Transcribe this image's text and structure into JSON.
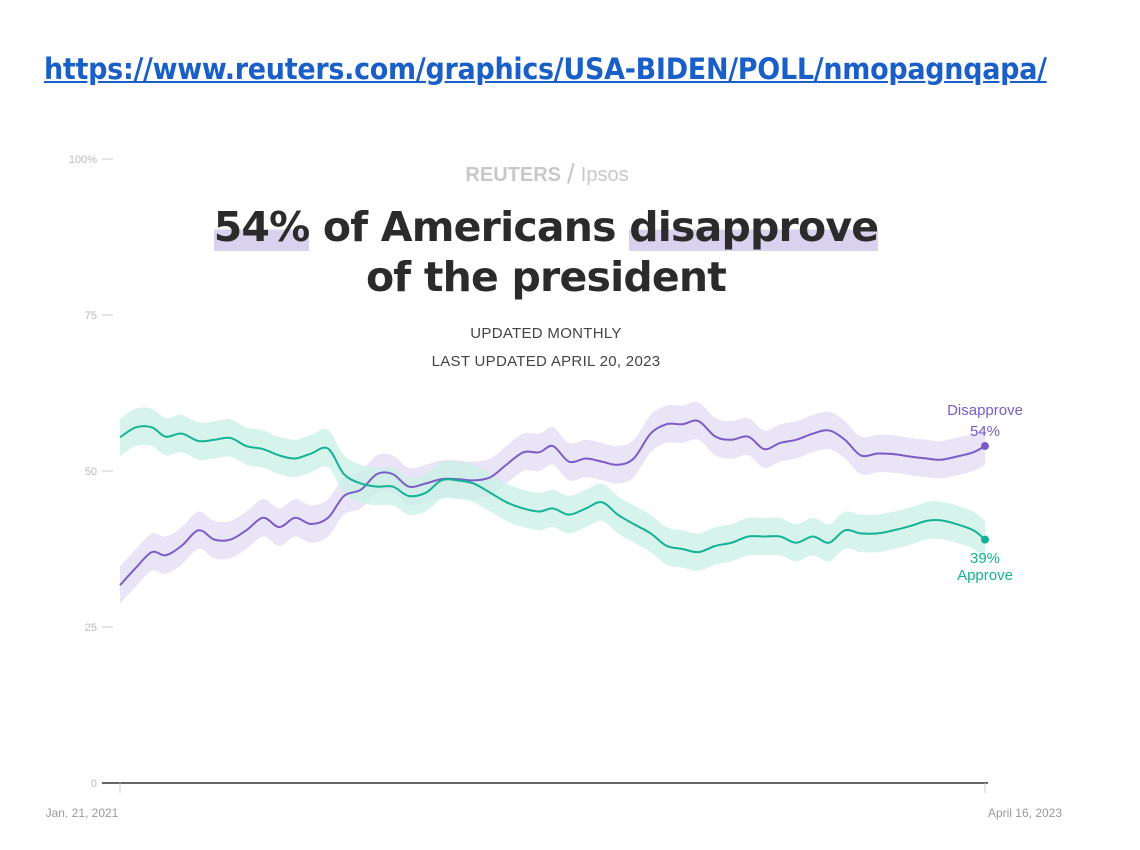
{
  "url": "https://www.reuters.com/graphics/USA-BIDEN/POLL/nmopagnqapa/",
  "brand": {
    "left": "REUTERS",
    "right": "Ipsos"
  },
  "headline": {
    "part1": "54%",
    "part2": " of Americans ",
    "part3": "disapprove",
    "line2": "of the president"
  },
  "subtitle1": "UPDATED MONTHLY",
  "subtitle2": "LAST UPDATED APRIL 20, 2023",
  "colors": {
    "approve": "#14b294",
    "approve_band": "#c9f0e6",
    "disapprove": "#7b5cc6",
    "disapprove_band": "#e3dcf3",
    "link": "#1a5fc8",
    "highlight": "#d9d2ee"
  },
  "chart_data": {
    "type": "line",
    "ylim": [
      0,
      100
    ],
    "yticks": [
      {
        "value": 0,
        "label": "0"
      },
      {
        "value": 25,
        "label": "25"
      },
      {
        "value": 50,
        "label": "50"
      },
      {
        "value": 75,
        "label": "75"
      },
      {
        "value": 100,
        "label": "100%"
      }
    ],
    "xlim": [
      "2021-01-21",
      "2023-04-16"
    ],
    "xticks": [
      {
        "value": "2021-01-21",
        "label": "Jan. 21, 2021"
      },
      {
        "value": "2023-04-16",
        "label": "April 16, 2023"
      }
    ],
    "band_margin": 3,
    "grid": false,
    "x": [
      "2021-01-21",
      "2021-02-05",
      "2021-02-20",
      "2021-03-05",
      "2021-03-20",
      "2021-04-05",
      "2021-04-20",
      "2021-05-05",
      "2021-05-20",
      "2021-06-05",
      "2021-06-20",
      "2021-07-05",
      "2021-07-20",
      "2021-08-05",
      "2021-08-20",
      "2021-09-05",
      "2021-09-20",
      "2021-10-05",
      "2021-10-20",
      "2021-11-05",
      "2021-11-20",
      "2021-12-05",
      "2021-12-20",
      "2022-01-05",
      "2022-01-20",
      "2022-02-05",
      "2022-02-20",
      "2022-03-05",
      "2022-03-20",
      "2022-04-05",
      "2022-04-20",
      "2022-05-05",
      "2022-05-20",
      "2022-06-05",
      "2022-06-20",
      "2022-07-05",
      "2022-07-20",
      "2022-08-05",
      "2022-08-20",
      "2022-09-05",
      "2022-09-20",
      "2022-10-05",
      "2022-10-20",
      "2022-11-05",
      "2022-11-20",
      "2022-12-05",
      "2022-12-20",
      "2023-01-05",
      "2023-01-20",
      "2023-02-05",
      "2023-02-20",
      "2023-03-05",
      "2023-03-20",
      "2023-04-05",
      "2023-04-16"
    ],
    "series": [
      {
        "name": "Disapprove",
        "end_label": "54%",
        "values": [
          31.7,
          34.5,
          37,
          36.5,
          38,
          40.5,
          39,
          39,
          40.5,
          42.5,
          41,
          42.5,
          41.5,
          42.5,
          46,
          47,
          49.5,
          49.5,
          47.5,
          48,
          48.7,
          48.7,
          48.5,
          49,
          51,
          53,
          53,
          54,
          51.5,
          52,
          51.5,
          51,
          52,
          56,
          57.5,
          57.5,
          58,
          55.5,
          55,
          55.5,
          53.5,
          54.5,
          55,
          56,
          56.5,
          55,
          52.5,
          52.8,
          52.7,
          52.3,
          52,
          51.8,
          52.3,
          53,
          54
        ]
      },
      {
        "name": "Approve",
        "end_label": "39%",
        "values": [
          55.4,
          57,
          57,
          55.5,
          56,
          54.8,
          55,
          55.3,
          54,
          53.5,
          52.5,
          52,
          52.8,
          53.6,
          49.5,
          48,
          47.5,
          47.5,
          46,
          46.5,
          48.5,
          48.5,
          48,
          46.5,
          45,
          44,
          43.5,
          44,
          43,
          44,
          45,
          43,
          41.5,
          40,
          38,
          37.5,
          37,
          38,
          38.5,
          39.5,
          39.5,
          39.5,
          38.5,
          39.5,
          38.5,
          40.5,
          40,
          40,
          40.5,
          41.2,
          42,
          42.1,
          41.5,
          40.5,
          39
        ]
      }
    ]
  }
}
